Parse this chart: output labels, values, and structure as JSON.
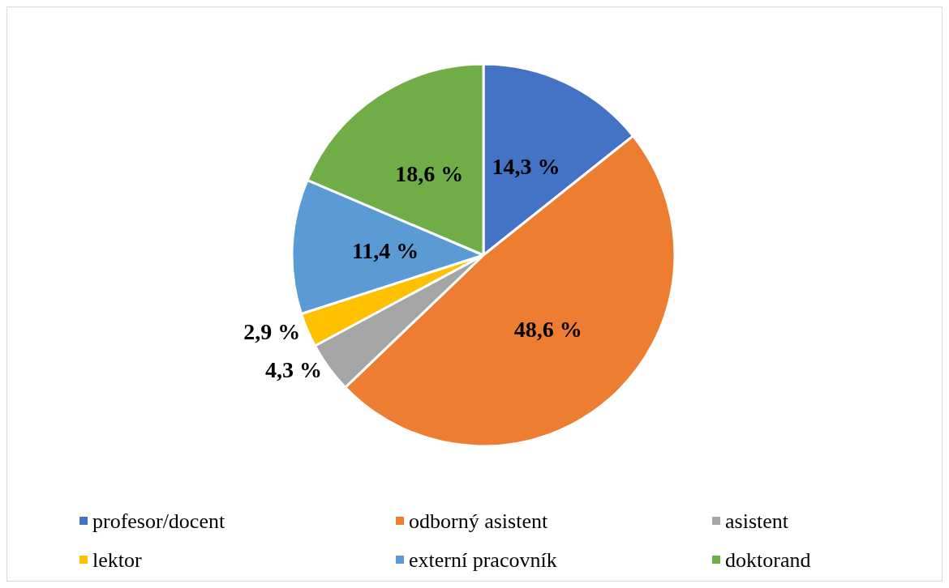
{
  "chart_data": {
    "type": "pie",
    "categories": [
      "profesor/docent",
      "odborný asistent",
      "asistent",
      "lektor",
      "externí pracovník",
      "doktorand"
    ],
    "values": [
      14.3,
      48.6,
      4.3,
      2.9,
      11.4,
      18.6
    ],
    "colors": [
      "#4472c4",
      "#ed7d31",
      "#a5a5a5",
      "#ffc000",
      "#5b9bd5",
      "#70ad47"
    ],
    "value_labels": [
      "14,3 %",
      "48,6 %",
      "4,3 %",
      "2,9 %",
      "11,4 %",
      "18,6 %"
    ],
    "legend": "bottom"
  }
}
